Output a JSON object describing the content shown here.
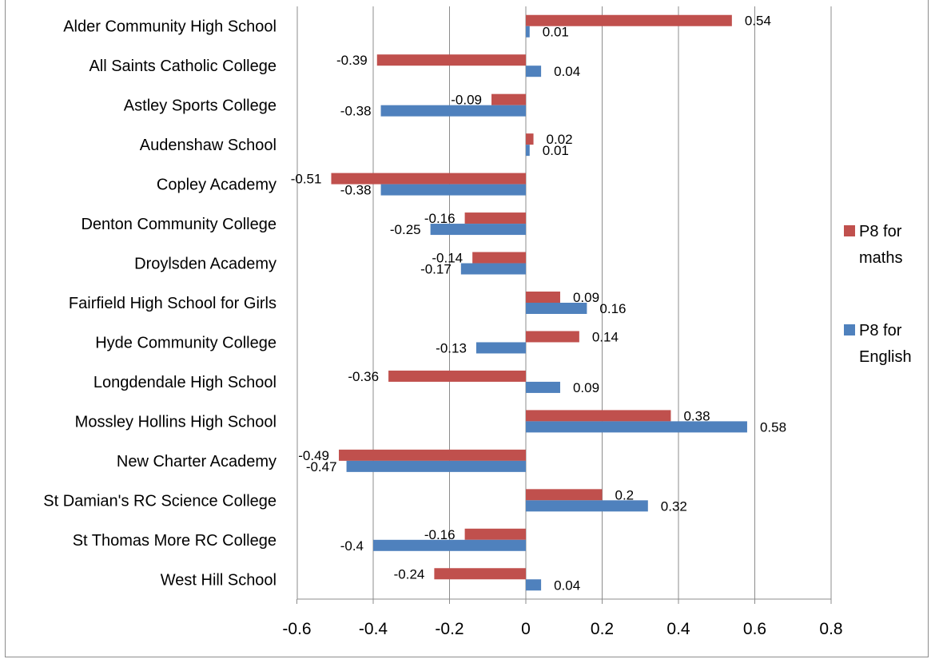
{
  "chart_data": {
    "type": "bar",
    "orientation": "horizontal",
    "categories": [
      "Alder Community High School",
      "All Saints Catholic College",
      "Astley Sports College",
      "Audenshaw School",
      "Copley Academy",
      "Denton Community College",
      "Droylsden Academy",
      "Fairfield High School for Girls",
      "Hyde Community College",
      "Longdendale High School",
      "Mossley Hollins High School",
      "New Charter Academy",
      "St Damian's RC Science College",
      "St Thomas More RC College",
      "West Hill School"
    ],
    "series": [
      {
        "name": "P8 for maths",
        "color": "#c0504d",
        "values": [
          0.54,
          -0.39,
          -0.09,
          0.02,
          -0.51,
          -0.16,
          -0.14,
          0.09,
          0.14,
          -0.36,
          0.38,
          -0.49,
          0.2,
          -0.16,
          -0.24
        ]
      },
      {
        "name": "P8 for English",
        "color": "#4f81bd",
        "values": [
          0.01,
          0.04,
          -0.38,
          0.01,
          -0.38,
          -0.25,
          -0.17,
          0.16,
          -0.13,
          0.09,
          0.58,
          -0.47,
          0.32,
          -0.4,
          0.04
        ]
      }
    ],
    "x_ticks": [
      "-0.6",
      "-0.4",
      "-0.2",
      "0",
      "0.2",
      "0.4",
      "0.6",
      "0.8"
    ],
    "xlim": [
      -0.6,
      0.8
    ],
    "grid": true,
    "legend_position": "right",
    "legend": {
      "maths": [
        "P8 for",
        "maths"
      ],
      "english": [
        "P8 for",
        "English"
      ]
    }
  }
}
